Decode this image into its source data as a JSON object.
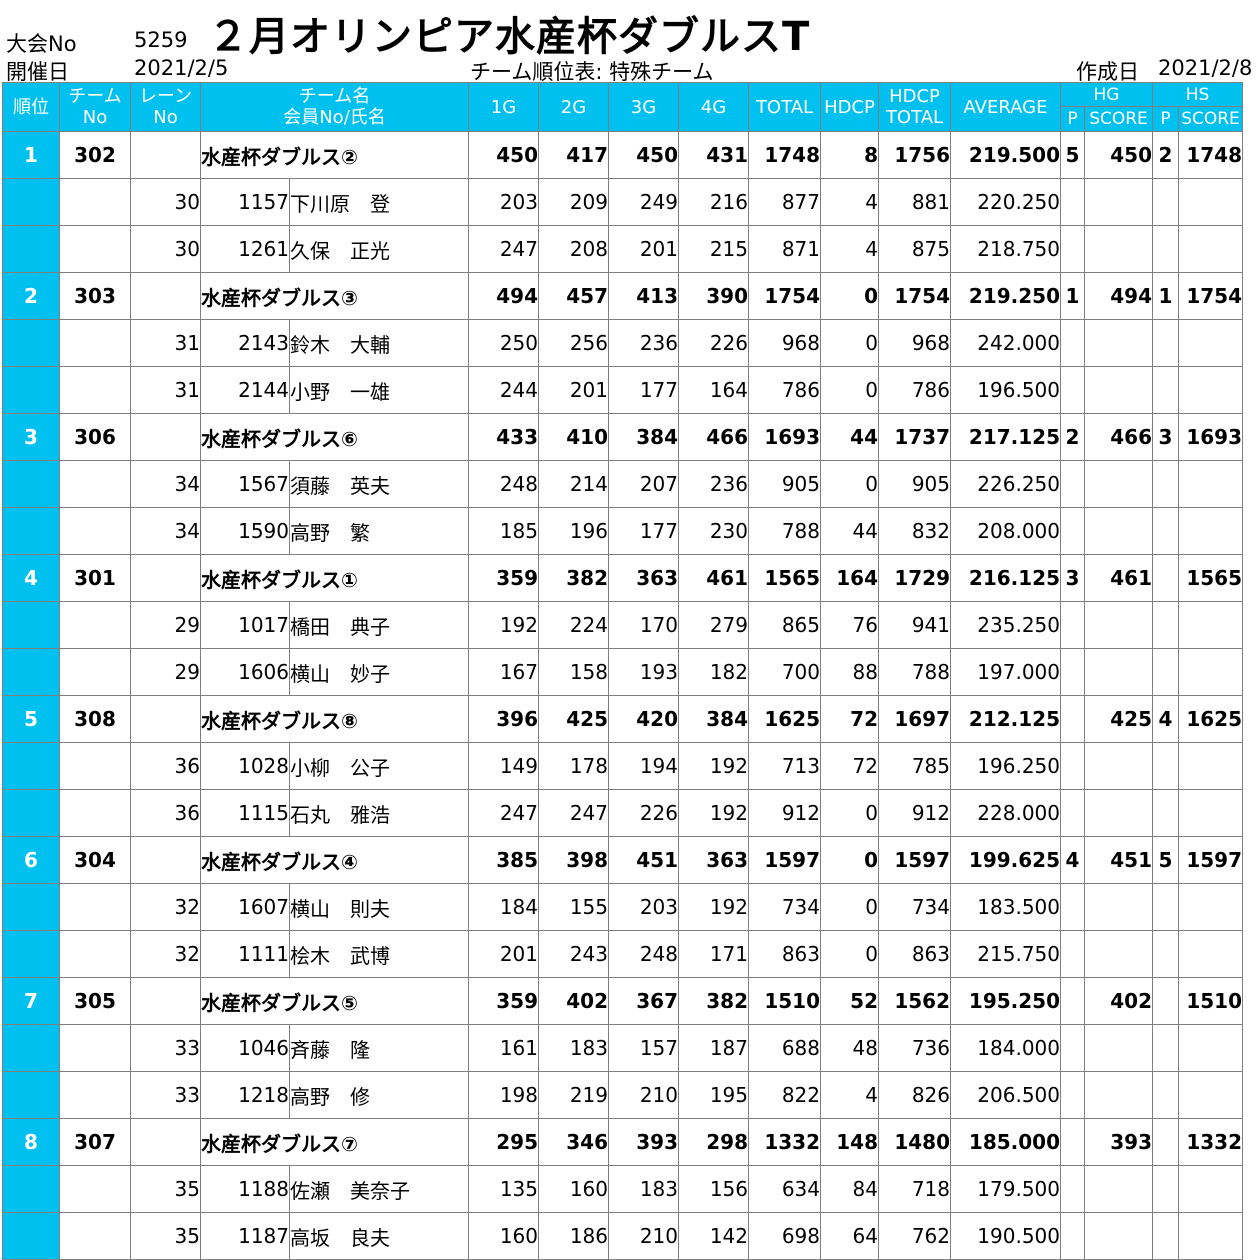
{
  "header": {
    "tournament_no_label": "大会No",
    "tournament_no": "5259",
    "date_label": "開催日",
    "date": "2021/2/5",
    "title": "２月オリンピア水産杯ダブルスT",
    "subtitle": "チーム順位表: 特殊チーム",
    "created_label": "作成日",
    "created_date": "2021/2/8"
  },
  "columns": {
    "rank": "順位",
    "team_no_1": "チーム",
    "team_no_2": "No",
    "lane_no_1": "レーン",
    "lane_no_2": "No",
    "team_name": "チーム名",
    "member": "会員No/氏名",
    "g1": "1G",
    "g2": "2G",
    "g3": "3G",
    "g4": "4G",
    "total": "TOTAL",
    "hdcp": "HDCP",
    "hdcp_total_1": "HDCP",
    "hdcp_total_2": "TOTAL",
    "average": "AVERAGE",
    "hg": "HG",
    "hs": "HS",
    "p": "P",
    "score": "SCORE"
  },
  "teams": [
    {
      "rank": "1",
      "team_no": "302",
      "name": "水産杯ダブルス②",
      "g1": "450",
      "g2": "417",
      "g3": "450",
      "g4": "431",
      "total": "1748",
      "hdcp": "8",
      "hdcp_total": "1756",
      "average": "219.500",
      "hg_p": "5",
      "hg_score": "450",
      "hs_p": "2",
      "hs_score": "1748",
      "members": [
        {
          "lane": "30",
          "member_no": "1157",
          "name": "下川原　登",
          "g1": "203",
          "g2": "209",
          "g3": "249",
          "g4": "216",
          "total": "877",
          "hdcp": "4",
          "hdcp_total": "881",
          "average": "220.250"
        },
        {
          "lane": "30",
          "member_no": "1261",
          "name": "久保　正光",
          "g1": "247",
          "g2": "208",
          "g3": "201",
          "g4": "215",
          "total": "871",
          "hdcp": "4",
          "hdcp_total": "875",
          "average": "218.750"
        }
      ]
    },
    {
      "rank": "2",
      "team_no": "303",
      "name": "水産杯ダブルス③",
      "g1": "494",
      "g2": "457",
      "g3": "413",
      "g4": "390",
      "total": "1754",
      "hdcp": "0",
      "hdcp_total": "1754",
      "average": "219.250",
      "hg_p": "1",
      "hg_score": "494",
      "hs_p": "1",
      "hs_score": "1754",
      "members": [
        {
          "lane": "31",
          "member_no": "2143",
          "name": "鈴木　大輔",
          "g1": "250",
          "g2": "256",
          "g3": "236",
          "g4": "226",
          "total": "968",
          "hdcp": "0",
          "hdcp_total": "968",
          "average": "242.000"
        },
        {
          "lane": "31",
          "member_no": "2144",
          "name": "小野　一雄",
          "g1": "244",
          "g2": "201",
          "g3": "177",
          "g4": "164",
          "total": "786",
          "hdcp": "0",
          "hdcp_total": "786",
          "average": "196.500"
        }
      ]
    },
    {
      "rank": "3",
      "team_no": "306",
      "name": "水産杯ダブルス⑥",
      "g1": "433",
      "g2": "410",
      "g3": "384",
      "g4": "466",
      "total": "1693",
      "hdcp": "44",
      "hdcp_total": "1737",
      "average": "217.125",
      "hg_p": "2",
      "hg_score": "466",
      "hs_p": "3",
      "hs_score": "1693",
      "members": [
        {
          "lane": "34",
          "member_no": "1567",
          "name": "須藤　英夫",
          "g1": "248",
          "g2": "214",
          "g3": "207",
          "g4": "236",
          "total": "905",
          "hdcp": "0",
          "hdcp_total": "905",
          "average": "226.250"
        },
        {
          "lane": "34",
          "member_no": "1590",
          "name": "高野　繁",
          "g1": "185",
          "g2": "196",
          "g3": "177",
          "g4": "230",
          "total": "788",
          "hdcp": "44",
          "hdcp_total": "832",
          "average": "208.000"
        }
      ]
    },
    {
      "rank": "4",
      "team_no": "301",
      "name": "水産杯ダブルス①",
      "g1": "359",
      "g2": "382",
      "g3": "363",
      "g4": "461",
      "total": "1565",
      "hdcp": "164",
      "hdcp_total": "1729",
      "average": "216.125",
      "hg_p": "3",
      "hg_score": "461",
      "hs_p": "",
      "hs_score": "1565",
      "members": [
        {
          "lane": "29",
          "member_no": "1017",
          "name": "橋田　典子",
          "g1": "192",
          "g2": "224",
          "g3": "170",
          "g4": "279",
          "total": "865",
          "hdcp": "76",
          "hdcp_total": "941",
          "average": "235.250"
        },
        {
          "lane": "29",
          "member_no": "1606",
          "name": "横山　妙子",
          "g1": "167",
          "g2": "158",
          "g3": "193",
          "g4": "182",
          "total": "700",
          "hdcp": "88",
          "hdcp_total": "788",
          "average": "197.000"
        }
      ]
    },
    {
      "rank": "5",
      "team_no": "308",
      "name": "水産杯ダブルス⑧",
      "g1": "396",
      "g2": "425",
      "g3": "420",
      "g4": "384",
      "total": "1625",
      "hdcp": "72",
      "hdcp_total": "1697",
      "average": "212.125",
      "hg_p": "",
      "hg_score": "425",
      "hs_p": "4",
      "hs_score": "1625",
      "members": [
        {
          "lane": "36",
          "member_no": "1028",
          "name": "小柳　公子",
          "g1": "149",
          "g2": "178",
          "g3": "194",
          "g4": "192",
          "total": "713",
          "hdcp": "72",
          "hdcp_total": "785",
          "average": "196.250"
        },
        {
          "lane": "36",
          "member_no": "1115",
          "name": "石丸　雅浩",
          "g1": "247",
          "g2": "247",
          "g3": "226",
          "g4": "192",
          "total": "912",
          "hdcp": "0",
          "hdcp_total": "912",
          "average": "228.000"
        }
      ]
    },
    {
      "rank": "6",
      "team_no": "304",
      "name": "水産杯ダブルス④",
      "g1": "385",
      "g2": "398",
      "g3": "451",
      "g4": "363",
      "total": "1597",
      "hdcp": "0",
      "hdcp_total": "1597",
      "average": "199.625",
      "hg_p": "4",
      "hg_score": "451",
      "hs_p": "5",
      "hs_score": "1597",
      "members": [
        {
          "lane": "32",
          "member_no": "1607",
          "name": "横山　則夫",
          "g1": "184",
          "g2": "155",
          "g3": "203",
          "g4": "192",
          "total": "734",
          "hdcp": "0",
          "hdcp_total": "734",
          "average": "183.500"
        },
        {
          "lane": "32",
          "member_no": "1111",
          "name": "桧木　武博",
          "g1": "201",
          "g2": "243",
          "g3": "248",
          "g4": "171",
          "total": "863",
          "hdcp": "0",
          "hdcp_total": "863",
          "average": "215.750"
        }
      ]
    },
    {
      "rank": "7",
      "team_no": "305",
      "name": "水産杯ダブルス⑤",
      "g1": "359",
      "g2": "402",
      "g3": "367",
      "g4": "382",
      "total": "1510",
      "hdcp": "52",
      "hdcp_total": "1562",
      "average": "195.250",
      "hg_p": "",
      "hg_score": "402",
      "hs_p": "",
      "hs_score": "1510",
      "members": [
        {
          "lane": "33",
          "member_no": "1046",
          "name": "斉藤　隆",
          "g1": "161",
          "g2": "183",
          "g3": "157",
          "g4": "187",
          "total": "688",
          "hdcp": "48",
          "hdcp_total": "736",
          "average": "184.000"
        },
        {
          "lane": "33",
          "member_no": "1218",
          "name": "高野　修",
          "g1": "198",
          "g2": "219",
          "g3": "210",
          "g4": "195",
          "total": "822",
          "hdcp": "4",
          "hdcp_total": "826",
          "average": "206.500"
        }
      ]
    },
    {
      "rank": "8",
      "team_no": "307",
      "name": "水産杯ダブルス⑦",
      "g1": "295",
      "g2": "346",
      "g3": "393",
      "g4": "298",
      "total": "1332",
      "hdcp": "148",
      "hdcp_total": "1480",
      "average": "185.000",
      "hg_p": "",
      "hg_score": "393",
      "hs_p": "",
      "hs_score": "1332",
      "members": [
        {
          "lane": "35",
          "member_no": "1188",
          "name": "佐瀬　美奈子",
          "g1": "135",
          "g2": "160",
          "g3": "183",
          "g4": "156",
          "total": "634",
          "hdcp": "84",
          "hdcp_total": "718",
          "average": "179.500"
        },
        {
          "lane": "35",
          "member_no": "1187",
          "name": "高坂　良夫",
          "g1": "160",
          "g2": "186",
          "g3": "210",
          "g4": "142",
          "total": "698",
          "hdcp": "64",
          "hdcp_total": "762",
          "average": "190.500"
        }
      ]
    }
  ]
}
